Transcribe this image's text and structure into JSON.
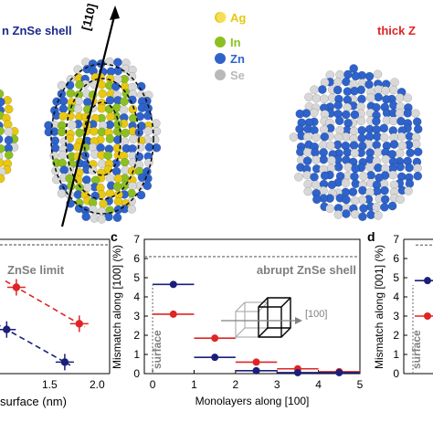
{
  "top_panel": {
    "left_title": "n ZnSe shell",
    "right_title": "thick Z",
    "axis_label": "[110]",
    "legend": [
      {
        "label": "Ag",
        "color": "#e8c813"
      },
      {
        "label": "In",
        "color": "#8cc021"
      },
      {
        "label": "Zn",
        "color": "#2f63cc"
      },
      {
        "label": "Se",
        "color": "#b9b9b9"
      }
    ]
  },
  "panel_b": {
    "limit_label": "ZnSe limit",
    "x_label_partial": "surface (nm)",
    "x_ticks": [
      "1.5",
      "2.0"
    ]
  },
  "panel_c": {
    "letter": "c",
    "y_label": "Mismatch along [100] (%)",
    "x_label": "Monolayers along [100]",
    "reference_label": "abrupt ZnSe shell",
    "surface_label": "surface",
    "inset_label": "[100]",
    "y_ticks": [
      "0",
      "1",
      "2",
      "3",
      "4",
      "5",
      "6",
      "7"
    ],
    "x_ticks": [
      "0",
      "1",
      "2",
      "3",
      "4",
      "5"
    ]
  },
  "panel_d": {
    "letter": "d",
    "y_label": "Mismatch along [001] (%)",
    "surface_label": "surface",
    "y_ticks": [
      "0",
      "1",
      "2",
      "3",
      "4",
      "5",
      "6",
      "7"
    ]
  },
  "colors": {
    "red_series": "#e02424",
    "navy_series": "#1a1f7a",
    "ref_line": "#808080"
  },
  "chart_data": [
    {
      "type": "scatter",
      "panel": "b",
      "series": [
        {
          "color": "red",
          "x": [
            1.15,
            1.8
          ],
          "y": [
            4.5,
            2.6
          ]
        },
        {
          "color": "navy",
          "x": [
            1.05,
            1.65
          ],
          "y": [
            2.3,
            0.6
          ]
        }
      ],
      "reference_line": {
        "label": "ZnSe limit",
        "y": 6.7
      },
      "xlim": [
        1.0,
        2.0
      ]
    },
    {
      "type": "scatter",
      "panel": "c",
      "xlabel": "Monolayers along [100]",
      "ylabel": "Mismatch along [100] (%)",
      "xlim": [
        -0.2,
        5
      ],
      "ylim": [
        0,
        7
      ],
      "reference_line": {
        "label": "abrupt ZnSe shell",
        "y": 6.1
      },
      "series": [
        {
          "color": "red",
          "x": [
            0.5,
            1.5,
            2.5,
            3.5,
            4.5
          ],
          "y": [
            3.1,
            1.85,
            0.6,
            0.25,
            0.1
          ],
          "xerr": 0.5
        },
        {
          "color": "navy",
          "x": [
            0.5,
            1.5,
            2.5,
            3.5,
            4.5
          ],
          "y": [
            4.65,
            0.85,
            0.15,
            0.05,
            0.05
          ],
          "xerr": 0.5
        }
      ]
    },
    {
      "type": "scatter",
      "panel": "d",
      "ylabel": "Mismatch along [001] (%)",
      "ylim": [
        0,
        7
      ],
      "reference_line": {
        "y": 6.7
      },
      "series": [
        {
          "color": "red",
          "x": [
            0.5
          ],
          "y": [
            3.0
          ]
        },
        {
          "color": "navy",
          "x": [
            0.5
          ],
          "y": [
            4.85
          ]
        }
      ]
    }
  ]
}
